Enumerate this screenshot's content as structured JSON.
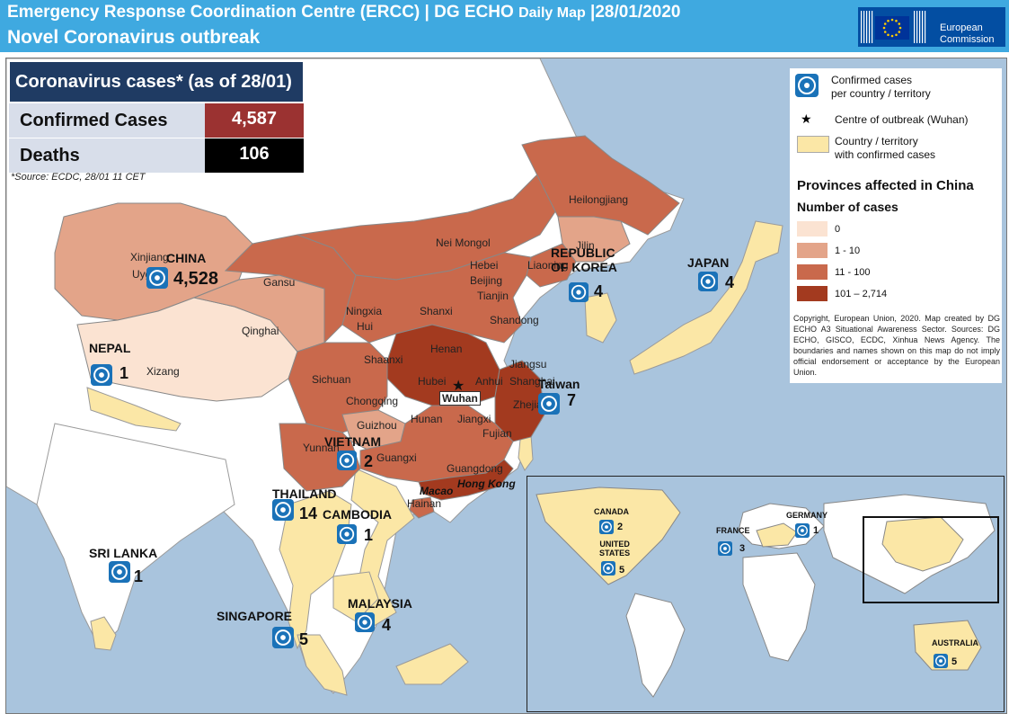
{
  "header": {
    "title_main": "Emergency Response Coordination Centre (ERCC) | DG ECHO",
    "title_small": "Daily Map",
    "title_date": "|28/01/2020",
    "subtitle": "Novel Coronavirus outbreak",
    "eu_logo_text_1": "European",
    "eu_logo_text_2": "Commission",
    "colors": {
      "header": "#3fa9e0",
      "eu_blue": "#034ea2"
    }
  },
  "summary": {
    "heading": "Coronavirus cases* (as of 28/01)",
    "confirmed_label": "Confirmed Cases",
    "confirmed_value": "4,587",
    "deaths_label": "Deaths",
    "deaths_value": "106",
    "source": "*Source: ECDC, 28/01 11 CET",
    "colors": {
      "heading": "#1f3b63",
      "confirmed": "#9b3231",
      "deaths": "#000000"
    }
  },
  "legend": {
    "items": [
      {
        "icon": "biohazard-icon",
        "label_1": "Confirmed  cases",
        "label_2": "per country / territory"
      },
      {
        "icon": "star-icon",
        "label_1": "Centre of outbreak (Wuhan)"
      },
      {
        "icon": "swatch",
        "label_1": "Country / territory",
        "label_2": "with confirmed cases",
        "color": "#fbe7a6"
      }
    ],
    "provinces_title": "Provinces affected in China",
    "cases_title": "Number of cases",
    "classes": [
      {
        "label": "0",
        "color": "#fbe3d2"
      },
      {
        "label": "1 - 10",
        "color": "#e3a489"
      },
      {
        "label": "11 - 100",
        "color": "#c9694c"
      },
      {
        "label": "101 – 2,714",
        "color": "#a33a1f"
      }
    ],
    "copyright": "Copyright, European Union, 2020. Map created by DG ECHO A3 Situational Awareness Sector. Sources: DG ECHO, GISCO, ECDC, Xinhua News Agency. The boundaries and names shown on this map do not imply official endorsement or acceptance by the European Union."
  },
  "provinces": [
    "Heilongjiang",
    "Jilin",
    "Liaoning",
    "Nei Mongol",
    "Hebei",
    "Beijing",
    "Tianjin",
    "Xinjiang",
    "Uygur",
    "Gansu",
    "Ningxia",
    "Hui",
    "Shanxi",
    "Shandong",
    "Qinghai",
    "Henan",
    "Shaanxi",
    "Jiangsu",
    "Hubei",
    "Anhui",
    "Shanghai",
    "Xizang",
    "Sichuan",
    "Chongqing",
    "Zhejiang",
    "Hunan",
    "Jiangxi",
    "Guizhou",
    "Fujian",
    "Yunnan",
    "Guangxi",
    "Guangdong",
    "Macao",
    "Hong Kong",
    "Hainan"
  ],
  "outbreak_centre": "Wuhan",
  "countries": [
    {
      "name": "CHINA",
      "count": "4,528"
    },
    {
      "name": "NEPAL",
      "count": "1"
    },
    {
      "name": "REPUBLIC",
      "name2": "OF KOREA",
      "count": "4"
    },
    {
      "name": "JAPAN",
      "count": "4"
    },
    {
      "name": "Taiwan",
      "count": "7"
    },
    {
      "name": "VIETNAM",
      "count": "2"
    },
    {
      "name": "THAILAND",
      "count": "14"
    },
    {
      "name": "CAMBODIA",
      "count": "1"
    },
    {
      "name": "SRI LANKA",
      "count": "1"
    },
    {
      "name": "MALAYSIA",
      "count": "4"
    },
    {
      "name": "SINGAPORE",
      "count": "5"
    }
  ],
  "inset": {
    "countries": [
      {
        "name": "CANADA",
        "count": "2"
      },
      {
        "name": "UNITED",
        "name2": "STATES",
        "count": "5"
      },
      {
        "name": "FRANCE",
        "count": "3"
      },
      {
        "name": "GERMANY",
        "count": "1"
      },
      {
        "name": "AUSTRALIA",
        "count": "5"
      }
    ]
  },
  "colors": {
    "sea": "#a9c4dd",
    "land": "#ffffff",
    "affected_country": "#fbe7a6"
  }
}
